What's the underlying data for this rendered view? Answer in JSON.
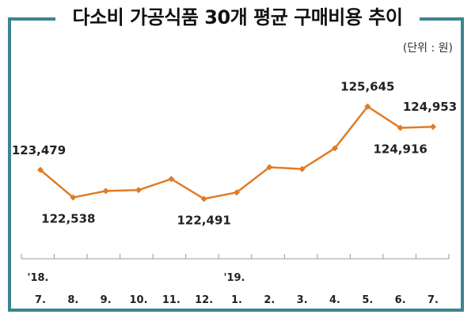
{
  "chart_data": {
    "type": "line",
    "title": "다소비 가공식품 30개 평균 구매비용 추이",
    "unit_label": "(단위 : 원)",
    "year_labels": [
      {
        "index": 0,
        "label": "'18."
      },
      {
        "index": 6,
        "label": "'19."
      }
    ],
    "categories": [
      "7.",
      "8.",
      "9.",
      "10.",
      "11.",
      "12.",
      "1.",
      "2.",
      "3.",
      "4.",
      "5.",
      "6.",
      "7."
    ],
    "series": [
      {
        "name": "평균 구매비용",
        "color": "#e07b24",
        "values": [
          123479,
          122538,
          122760,
          122790,
          123170,
          122491,
          122710,
          123570,
          123510,
          124220,
          125645,
          124916,
          124953
        ]
      }
    ],
    "data_labels": [
      {
        "index": 0,
        "text": "123,479",
        "position": "above"
      },
      {
        "index": 1,
        "text": "122,538",
        "position": "below"
      },
      {
        "index": 5,
        "text": "122,491",
        "position": "below"
      },
      {
        "index": 10,
        "text": "125,645",
        "position": "above"
      },
      {
        "index": 11,
        "text": "124,916",
        "position": "below"
      },
      {
        "index": 12,
        "text": "124,953",
        "position": "above"
      }
    ],
    "ylim": [
      121500,
      126500
    ],
    "grid": false,
    "xlabel": "",
    "ylabel": ""
  }
}
